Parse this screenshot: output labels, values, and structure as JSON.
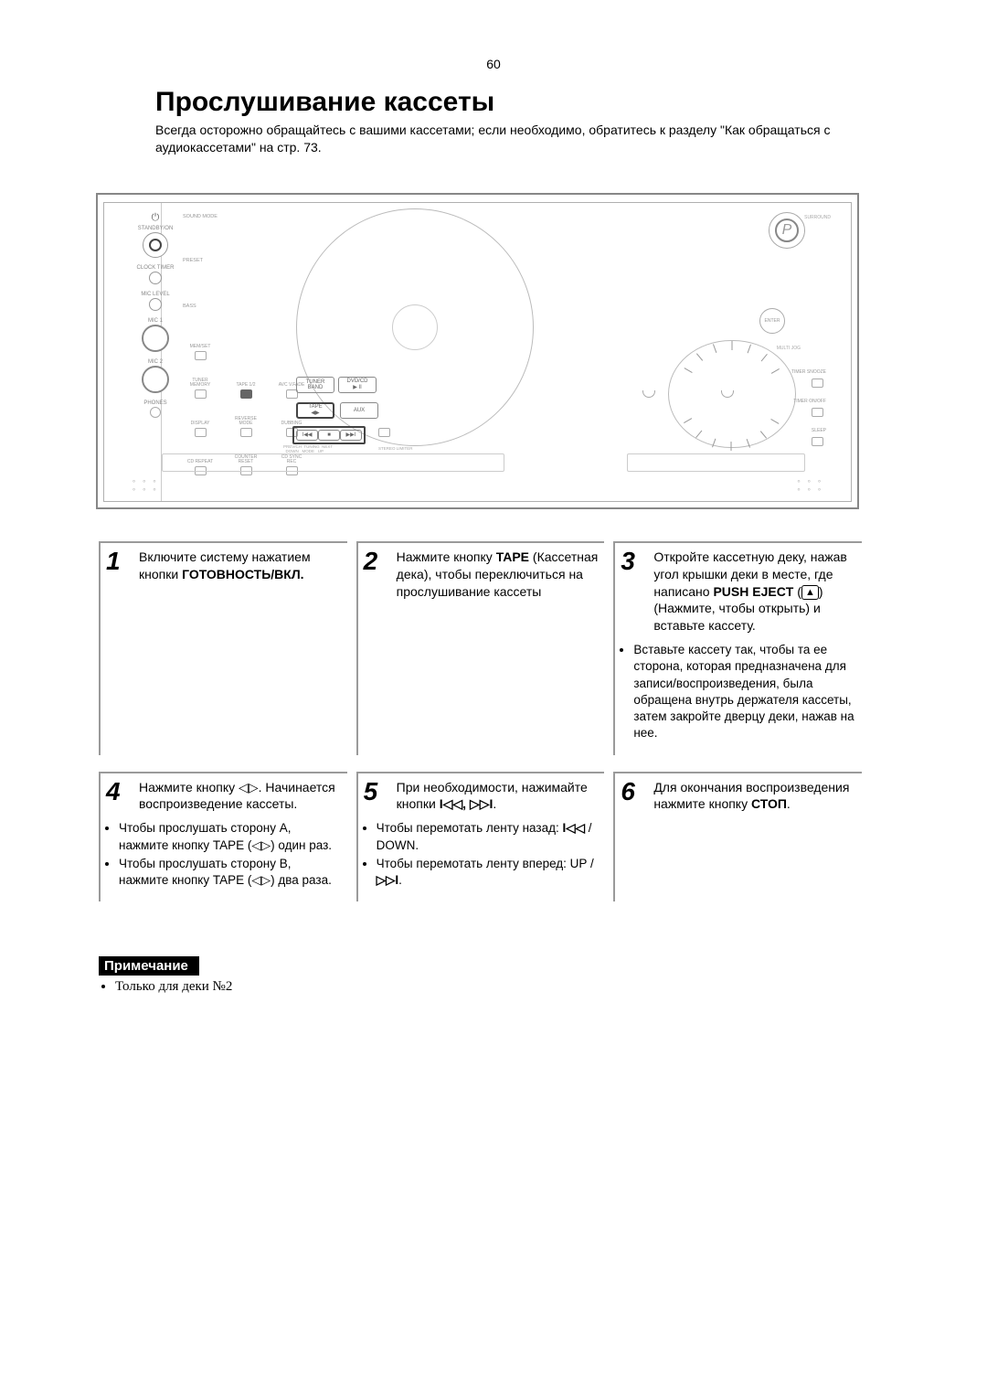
{
  "page": {
    "number": "60"
  },
  "title": "Прослушивание кассеты",
  "subtitle": "Всегда осторожно обращайтесь с вашими кассетами; если необходимо, обратитесь к разделу \"Как обращаться с аудиокассетами\" на стр. 73.",
  "device": {
    "left_col": {
      "standby_sym": "⏻",
      "standby_lbl": "STANDBY/ON",
      "clock_lbl": "CLOCK TIMER",
      "mic_level_lbl": "MIC LEVEL",
      "mic1_lbl": "MIC 1",
      "mic2_lbl": "MIC 2",
      "phones_lbl": "PHONES"
    },
    "left_btns": {
      "sound_mode": "SOUND MODE",
      "preset": "PRESET",
      "bass": "BASS",
      "memset": "MEM/SET",
      "tuner_mem": "TUNER MEMORY",
      "display": "DISPLAY",
      "cd_repeat": "CD REPEAT",
      "tape12": "TAPE 1/2",
      "avc_vfade": "AVC V.FADE",
      "reverse_mode": "REVERSE MODE",
      "counter_reset": "COUNTER RESET",
      "dubbing": "DUBBING",
      "cd_syncrec": "CD SYNC REC"
    },
    "sources": {
      "tuner": "TUNER",
      "tuner_sub": "BAND",
      "dvd": "DVD/CD",
      "dvd_sym": "▶ II",
      "tape": "TAPE",
      "tape_sym": "◀▶",
      "aux": "AUX"
    },
    "transport": {
      "rew": "I◀◀",
      "stop": "■",
      "ffw": "▶▶I",
      "labels": "PREV/CH  TUNING  NEXT\n  DOWN   MODE   UP"
    },
    "right": {
      "badge": "P",
      "enter": "ENTER",
      "multi_jog": "MULTI JOG",
      "surround": "SURROUND",
      "timer_snooze": "TIMER SNOOZE",
      "sleep": "SLEEP",
      "timer_on": "TIMER ON/OFF",
      "stereo_limiter": "STEREO LIMITER"
    },
    "colors": {
      "frame": "#878787",
      "line": "#b0b0b0",
      "label": "#999999"
    }
  },
  "steps": [
    {
      "n": "1",
      "html": "Включите систему нажатием кнопки <b>ГОТОВНОСТЬ/ВКЛ.</b>",
      "bullets": []
    },
    {
      "n": "2",
      "html": "Нажмите кнопку <b>TAPE</b> (Кассетная дека), чтобы переключиться на прослушивание кассеты",
      "bullets": []
    },
    {
      "n": "3",
      "html": "Откройте кассетную деку, нажав угол крышки деки в месте, где написано <b>PUSH EJECT</b> (<span class=\"eject-sym\">▲</span>) (Нажмите, чтобы открыть) и вставьте кассету.",
      "bullets": [
        "Вставьте кассету так, чтобы та ее сторона, которая предназначена для записи/воспроизведения, была обращена внутрь держателя кассеты, затем закройте дверцу деки, нажав на нее."
      ]
    },
    {
      "n": "4",
      "html": "Нажмите кнопку <span class=\"sym\">◁▷</span>. Начинается воспроизведение кассеты.",
      "bullets": [
        "Чтобы прослушать сторону А, нажмите кнопку TAPE (<span class=\"sym\">◁▷</span>) один раз.",
        "Чтобы прослушать сторону В, нажмите кнопку TAPE (<span class=\"sym\">◁▷</span>) два раза."
      ]
    },
    {
      "n": "5",
      "html": "При необходимости, нажимайте кнопки <b><span class=\"sym\">I◁◁</span>, <span class=\"sym\">▷▷I</span></b>.",
      "bullets": [
        "Чтобы перемотать ленту назад: <b><span class=\"sym\">I◁◁</span></b> / DOWN.",
        "Чтобы перемотать ленту вперед: UP / <b><span class=\"sym\">▷▷I</span></b>."
      ]
    },
    {
      "n": "6",
      "html": "Для окончания воспроизведения нажмите кнопку <b>СТОП</b>.",
      "bullets": []
    }
  ],
  "note": {
    "heading": "Примечание",
    "items": [
      "Только для деки №2"
    ]
  },
  "style": {
    "step_border": "#9a9a9a",
    "text_color": "#000000",
    "bg": "#ffffff"
  }
}
